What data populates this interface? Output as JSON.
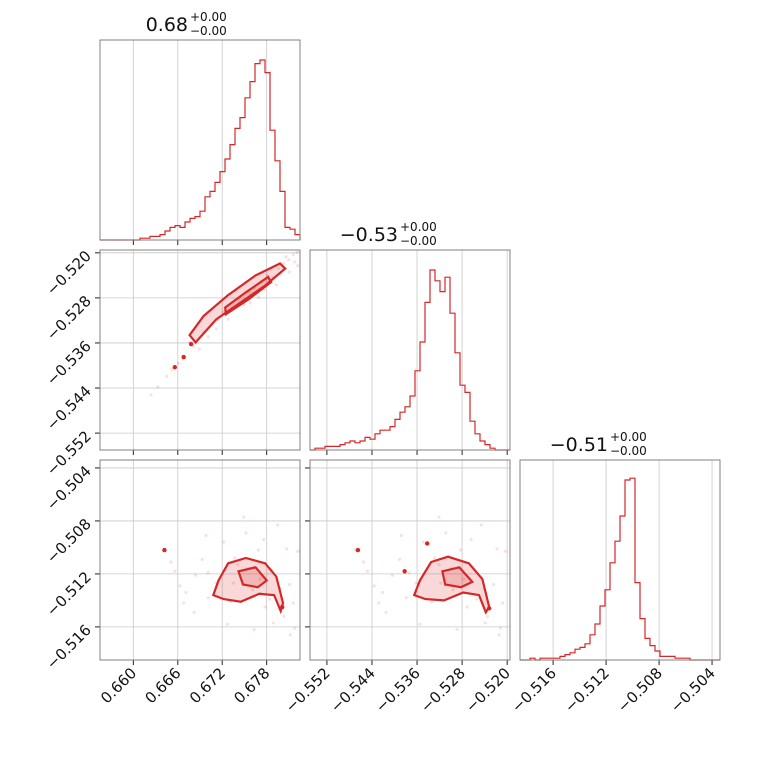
{
  "chart_data": {
    "type": "corner",
    "color": "#d62728",
    "parameters": [
      {
        "title": "0.68",
        "sup": "+0.00",
        "sub": "−0.00",
        "range": [
          0.6555,
          0.6825
        ],
        "ticks": [
          0.66,
          0.666,
          0.672,
          0.678
        ],
        "tick_labels": [
          "0.660",
          "0.666",
          "0.672",
          "0.678"
        ]
      },
      {
        "title": "−0.53",
        "sup": "+0.00",
        "sub": "−0.00",
        "range": [
          -0.555,
          -0.5195
        ],
        "ticks": [
          -0.552,
          -0.544,
          -0.536,
          -0.528,
          -0.52
        ],
        "tick_labels": [
          "−0.552",
          "−0.544",
          "−0.536",
          "−0.528",
          "−0.520"
        ]
      },
      {
        "title": "−0.51",
        "sup": "+0.00",
        "sub": "−0.00",
        "range": [
          -0.5185,
          -0.5034
        ],
        "ticks": [
          -0.516,
          -0.512,
          -0.508,
          -0.504
        ],
        "tick_labels": [
          "−0.516",
          "−0.512",
          "−0.508",
          "−0.504"
        ]
      }
    ],
    "histograms": [
      {
        "param": 0,
        "values": [
          0,
          0,
          0,
          0,
          0,
          0,
          0,
          0,
          0.01,
          0.01,
          0.02,
          0.02,
          0.03,
          0.05,
          0.07,
          0.08,
          0.07,
          0.1,
          0.12,
          0.13,
          0.16,
          0.24,
          0.27,
          0.32,
          0.38,
          0.45,
          0.53,
          0.62,
          0.68,
          0.79,
          0.88,
          0.98,
          1.0,
          0.93,
          0.61,
          0.44,
          0.27,
          0.07,
          0.06,
          0.03
        ]
      },
      {
        "param": 1,
        "values": [
          0,
          0.01,
          0.01,
          0.02,
          0.02,
          0.02,
          0.03,
          0.04,
          0.05,
          0.04,
          0.05,
          0.07,
          0.06,
          0.09,
          0.11,
          0.11,
          0.13,
          0.17,
          0.21,
          0.24,
          0.3,
          0.44,
          0.6,
          0.82,
          1.0,
          0.94,
          0.88,
          0.96,
          0.76,
          0.54,
          0.36,
          0.32,
          0.16,
          0.09,
          0.05,
          0.03,
          0.01,
          0,
          0,
          0
        ]
      },
      {
        "param": 2,
        "values": [
          0,
          0,
          0.01,
          0,
          0.01,
          0.01,
          0.01,
          0.01,
          0.02,
          0.03,
          0.04,
          0.06,
          0.07,
          0.09,
          0.14,
          0.2,
          0.3,
          0.39,
          0.54,
          0.66,
          0.8,
          1.0,
          1.01,
          0.43,
          0.23,
          0.12,
          0.08,
          0.05,
          0.02,
          0.02,
          0.02,
          0.01,
          0.01,
          0.01,
          0,
          0,
          0,
          0,
          0,
          0
        ]
      }
    ],
    "pairs": [
      {
        "x": 0,
        "y": 1,
        "contours": [
          [
            [
              0.6684,
              -0.5359
            ],
            [
              0.6712,
              -0.5318
            ],
            [
              0.6745,
              -0.5288
            ],
            [
              0.6778,
              -0.5258
            ],
            [
              0.6805,
              -0.5228
            ],
            [
              0.6798,
              -0.5219
            ],
            [
              0.6765,
              -0.524
            ],
            [
              0.6728,
              -0.5275
            ],
            [
              0.6695,
              -0.5312
            ],
            [
              0.6676,
              -0.5346
            ]
          ],
          [
            [
              0.6725,
              -0.5309
            ],
            [
              0.6755,
              -0.5283
            ],
            [
              0.6786,
              -0.5252
            ],
            [
              0.6782,
              -0.5243
            ],
            [
              0.6752,
              -0.527
            ],
            [
              0.6724,
              -0.5297
            ]
          ]
        ],
        "outliers": [
          [
            0.6668,
            -0.5385
          ],
          [
            0.6656,
            -0.5403
          ],
          [
            0.6678,
            -0.5362
          ]
        ],
        "samples": [
          [
            0.6633,
            -0.5438
          ],
          [
            0.6652,
            -0.5407
          ],
          [
            0.6667,
            -0.5388
          ],
          [
            0.6681,
            -0.5366
          ],
          [
            0.6695,
            -0.5341
          ],
          [
            0.6706,
            -0.5326
          ],
          [
            0.6712,
            -0.5335
          ],
          [
            0.6721,
            -0.5305
          ],
          [
            0.6734,
            -0.5298
          ],
          [
            0.6742,
            -0.5283
          ],
          [
            0.6749,
            -0.5292
          ],
          [
            0.6757,
            -0.5271
          ],
          [
            0.6764,
            -0.5262
          ],
          [
            0.6773,
            -0.5251
          ],
          [
            0.6781,
            -0.524
          ],
          [
            0.6789,
            -0.5243
          ],
          [
            0.6796,
            -0.5228
          ],
          [
            0.6803,
            -0.5219
          ],
          [
            0.681,
            -0.5212
          ],
          [
            0.6816,
            -0.5203
          ],
          [
            0.6821,
            -0.5199
          ],
          [
            0.6799,
            -0.5238
          ],
          [
            0.6776,
            -0.5266
          ],
          [
            0.6758,
            -0.5289
          ],
          [
            0.6728,
            -0.5318
          ],
          [
            0.6714,
            -0.5319
          ],
          [
            0.6701,
            -0.5349
          ],
          [
            0.6689,
            -0.5371
          ],
          [
            0.6645,
            -0.5419
          ],
          [
            0.6624,
            -0.5452
          ],
          [
            0.6818,
            -0.5216
          ],
          [
            0.6806,
            -0.5207
          ],
          [
            0.6786,
            -0.5229
          ],
          [
            0.6769,
            -0.5279
          ],
          [
            0.6738,
            -0.5268
          ],
          [
            0.6811,
            -0.5234
          ],
          [
            0.6822,
            -0.5223
          ],
          [
            0.6793,
            -0.5257
          ],
          [
            0.6661,
            -0.5396
          ],
          [
            0.6676,
            -0.5359
          ]
        ]
      },
      {
        "x": 0,
        "y": 2,
        "contours": [
          [
            [
              0.6715,
              -0.5125
            ],
            [
              0.6728,
              -0.5112
            ],
            [
              0.6752,
              -0.5108
            ],
            [
              0.6778,
              -0.5112
            ],
            [
              0.6793,
              -0.5122
            ],
            [
              0.6802,
              -0.5142
            ],
            [
              0.6799,
              -0.5148
            ],
            [
              0.679,
              -0.5136
            ],
            [
              0.677,
              -0.5135
            ],
            [
              0.6745,
              -0.5141
            ],
            [
              0.6722,
              -0.5139
            ],
            [
              0.6708,
              -0.5136
            ]
          ],
          [
            [
              0.6742,
              -0.5118
            ],
            [
              0.6765,
              -0.5115
            ],
            [
              0.678,
              -0.5125
            ],
            [
              0.6768,
              -0.513
            ],
            [
              0.6748,
              -0.5128
            ]
          ]
        ],
        "outliers": [
          [
            0.6642,
            -0.5102
          ],
          [
            0.6801,
            -0.5145
          ]
        ],
        "samples": [
          [
            0.6642,
            -0.5102
          ],
          [
            0.6656,
            -0.5118
          ],
          [
            0.6663,
            -0.5129
          ],
          [
            0.6671,
            -0.5134
          ],
          [
            0.6684,
            -0.5121
          ],
          [
            0.6693,
            -0.5109
          ],
          [
            0.6701,
            -0.5138
          ],
          [
            0.6712,
            -0.5127
          ],
          [
            0.6722,
            -0.5096
          ],
          [
            0.6731,
            -0.5141
          ],
          [
            0.6741,
            -0.5113
          ],
          [
            0.6752,
            -0.5089
          ],
          [
            0.6761,
            -0.5132
          ],
          [
            0.6769,
            -0.5102
          ],
          [
            0.6778,
            -0.5145
          ],
          [
            0.6786,
            -0.5117
          ],
          [
            0.6795,
            -0.5083
          ],
          [
            0.6803,
            -0.5152
          ],
          [
            0.6811,
            -0.5128
          ],
          [
            0.6818,
            -0.5161
          ],
          [
            0.6822,
            -0.5103
          ],
          [
            0.6682,
            -0.5149
          ],
          [
            0.6698,
            -0.5091
          ],
          [
            0.6727,
            -0.5158
          ],
          [
            0.6749,
            -0.5077
          ],
          [
            0.6763,
            -0.5162
          ],
          [
            0.6776,
            -0.5094
          ],
          [
            0.6789,
            -0.5157
          ],
          [
            0.6807,
            -0.5101
          ],
          [
            0.6816,
            -0.5142
          ],
          [
            0.6701,
            -0.5119
          ],
          [
            0.6737,
            -0.5108
          ],
          [
            0.6771,
            -0.5124
          ],
          [
            0.6799,
            -0.5131
          ],
          [
            0.6651,
            -0.5111
          ],
          [
            0.6668,
            -0.5142
          ],
          [
            0.6735,
            -0.5127
          ],
          [
            0.6784,
            -0.5139
          ],
          [
            0.6812,
            -0.5166
          ],
          [
            0.6754,
            -0.5116
          ]
        ]
      },
      {
        "x": 1,
        "y": 2,
        "contours": [
          [
            [
              -0.5355,
              -0.5125
            ],
            [
              -0.5335,
              -0.5111
            ],
            [
              -0.5305,
              -0.5107
            ],
            [
              -0.5268,
              -0.5112
            ],
            [
              -0.5244,
              -0.5124
            ],
            [
              -0.5232,
              -0.5145
            ],
            [
              -0.5238,
              -0.5149
            ],
            [
              -0.525,
              -0.5136
            ],
            [
              -0.5278,
              -0.5134
            ],
            [
              -0.5312,
              -0.514
            ],
            [
              -0.5345,
              -0.5139
            ],
            [
              -0.5365,
              -0.5136
            ]
          ],
          [
            [
              -0.5315,
              -0.5118
            ],
            [
              -0.5285,
              -0.5115
            ],
            [
              -0.5262,
              -0.5126
            ],
            [
              -0.5282,
              -0.513
            ],
            [
              -0.531,
              -0.5128
            ]
          ]
        ],
        "outliers": [
          [
            -0.5465,
            -0.5102
          ],
          [
            -0.5382,
            -0.5118
          ],
          [
            -0.5232,
            -0.5146
          ],
          [
            -0.5342,
            -0.5097
          ]
        ],
        "samples": [
          [
            -0.5469,
            -0.5102
          ],
          [
            -0.5448,
            -0.5118
          ],
          [
            -0.5436,
            -0.5129
          ],
          [
            -0.5421,
            -0.5134
          ],
          [
            -0.5404,
            -0.5121
          ],
          [
            -0.5391,
            -0.5109
          ],
          [
            -0.5379,
            -0.5138
          ],
          [
            -0.5362,
            -0.5127
          ],
          [
            -0.5349,
            -0.5096
          ],
          [
            -0.5334,
            -0.5141
          ],
          [
            -0.5321,
            -0.5113
          ],
          [
            -0.5309,
            -0.5089
          ],
          [
            -0.5296,
            -0.5132
          ],
          [
            -0.5283,
            -0.5102
          ],
          [
            -0.5271,
            -0.5145
          ],
          [
            -0.5258,
            -0.5117
          ],
          [
            -0.5246,
            -0.5083
          ],
          [
            -0.5235,
            -0.5152
          ],
          [
            -0.5224,
            -0.5128
          ],
          [
            -0.5212,
            -0.5161
          ],
          [
            -0.5203,
            -0.5103
          ],
          [
            -0.5415,
            -0.5149
          ],
          [
            -0.5388,
            -0.5091
          ],
          [
            -0.5355,
            -0.5158
          ],
          [
            -0.5321,
            -0.5077
          ],
          [
            -0.5289,
            -0.5162
          ],
          [
            -0.5264,
            -0.5094
          ],
          [
            -0.5239,
            -0.5157
          ],
          [
            -0.5218,
            -0.5101
          ],
          [
            -0.5208,
            -0.5142
          ],
          [
            -0.5374,
            -0.5119
          ],
          [
            -0.5329,
            -0.5108
          ],
          [
            -0.5277,
            -0.5124
          ],
          [
            -0.5241,
            -0.5131
          ],
          [
            -0.5455,
            -0.5111
          ],
          [
            -0.5428,
            -0.5142
          ],
          [
            -0.5318,
            -0.5127
          ],
          [
            -0.5254,
            -0.5139
          ],
          [
            -0.5214,
            -0.5166
          ],
          [
            -0.5299,
            -0.5116
          ]
        ]
      }
    ]
  }
}
